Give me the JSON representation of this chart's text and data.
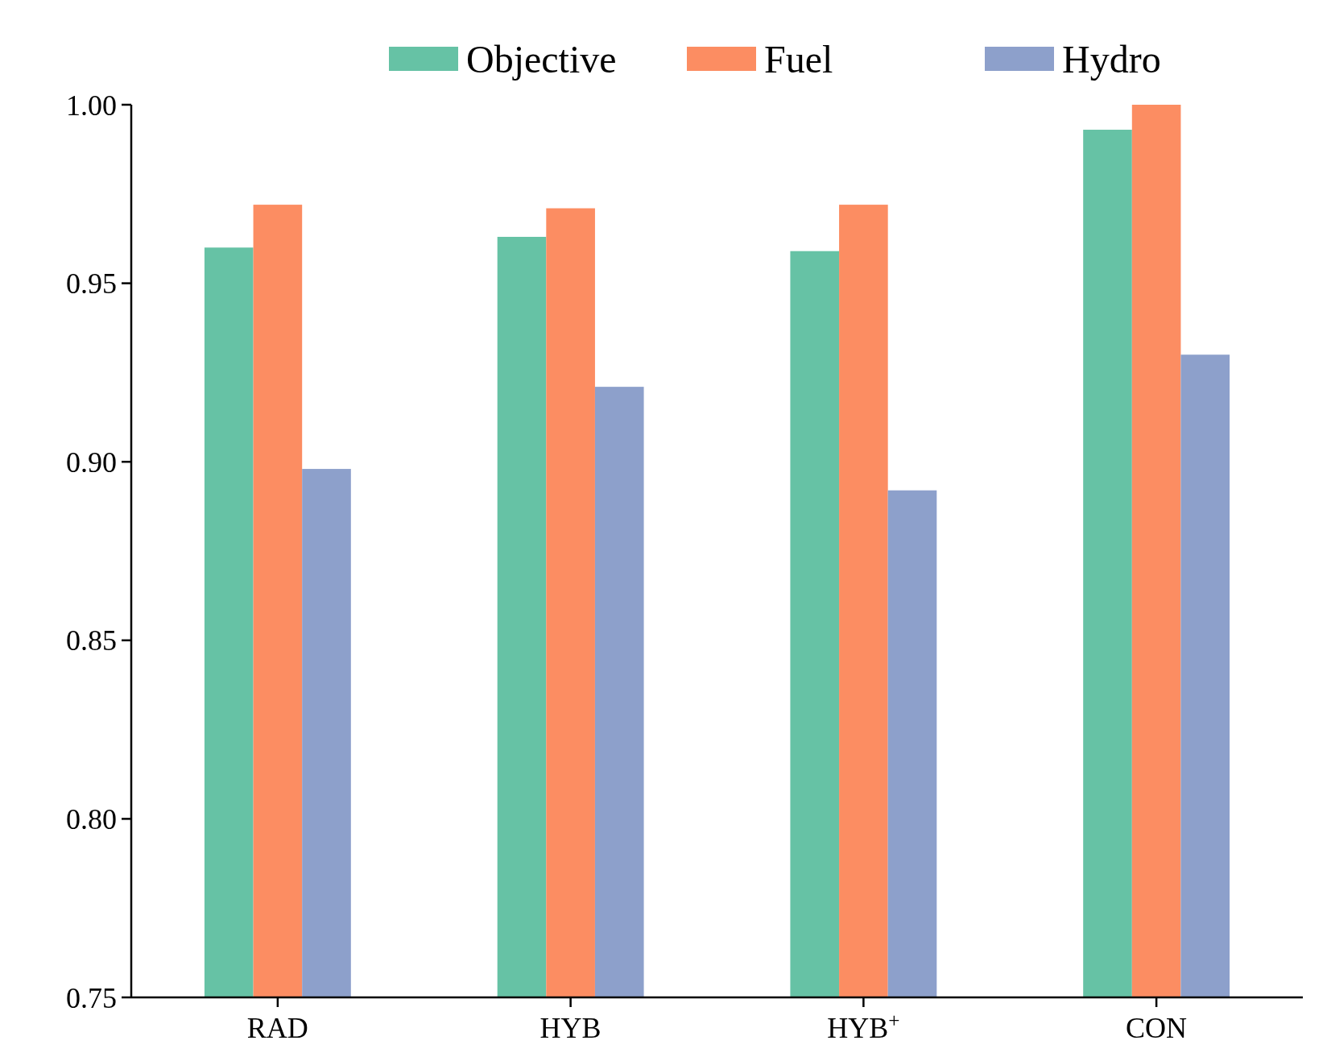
{
  "chart_data": {
    "type": "bar",
    "categories": [
      "RAD",
      "HYB",
      "HYB$^{+}$",
      "CON"
    ],
    "series": [
      {
        "name": "Objective",
        "color": "#66c2a5",
        "values": [
          0.96,
          0.963,
          0.959,
          0.993
        ]
      },
      {
        "name": "Fuel",
        "color": "#fc8d62",
        "values": [
          0.972,
          0.971,
          0.972,
          1.0
        ]
      },
      {
        "name": "Hydro",
        "color": "#8da0cb",
        "values": [
          0.898,
          0.921,
          0.892,
          0.93
        ]
      }
    ],
    "ylim": [
      0.75,
      1.0
    ],
    "yticks": [
      {
        "value": 0.75,
        "label": "0.75"
      },
      {
        "value": 0.8,
        "label": "0.80"
      },
      {
        "value": 0.85,
        "label": "0.85"
      },
      {
        "value": 0.9,
        "label": "0.90"
      },
      {
        "value": 0.95,
        "label": "0.95"
      },
      {
        "value": 1.0,
        "label": "1.00"
      }
    ],
    "grid": false,
    "legend": "top"
  }
}
